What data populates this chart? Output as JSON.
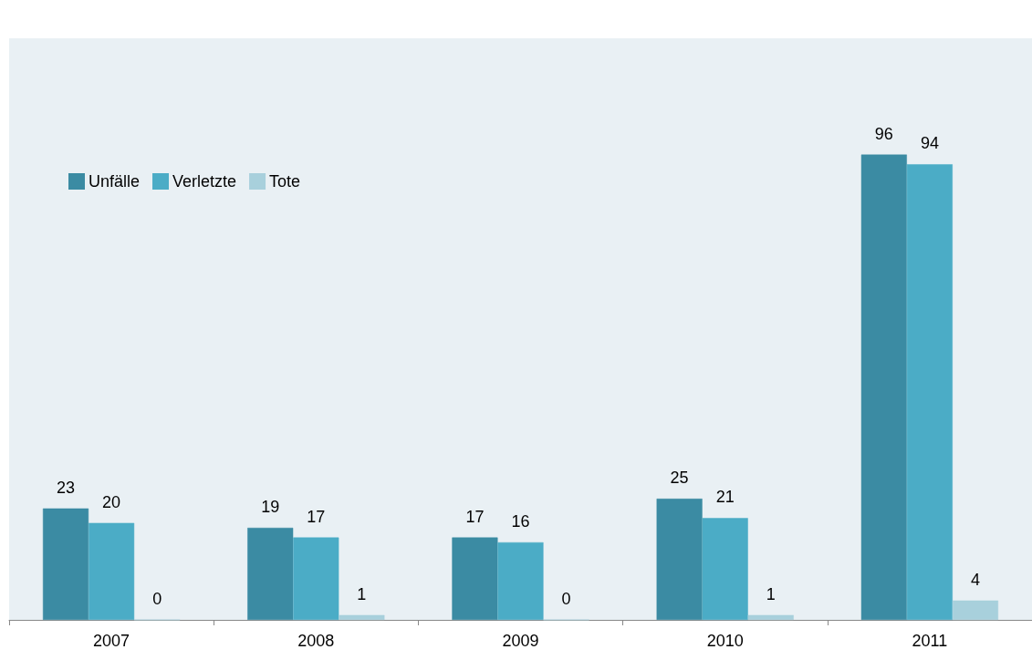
{
  "chart_data": {
    "type": "bar",
    "categories": [
      "2007",
      "2008",
      "2009",
      "2010",
      "2011"
    ],
    "series": [
      {
        "name": "Unfälle",
        "color": "#3b8ba3",
        "values": [
          23,
          19,
          17,
          25,
          96
        ]
      },
      {
        "name": "Verletzte",
        "color": "#4bacc6",
        "values": [
          20,
          17,
          16,
          21,
          94
        ]
      },
      {
        "name": "Tote",
        "color": "#a8d0dc",
        "values": [
          0,
          1,
          0,
          1,
          4
        ]
      }
    ],
    "data_labels": true,
    "legend": "top left",
    "grid": false
  }
}
